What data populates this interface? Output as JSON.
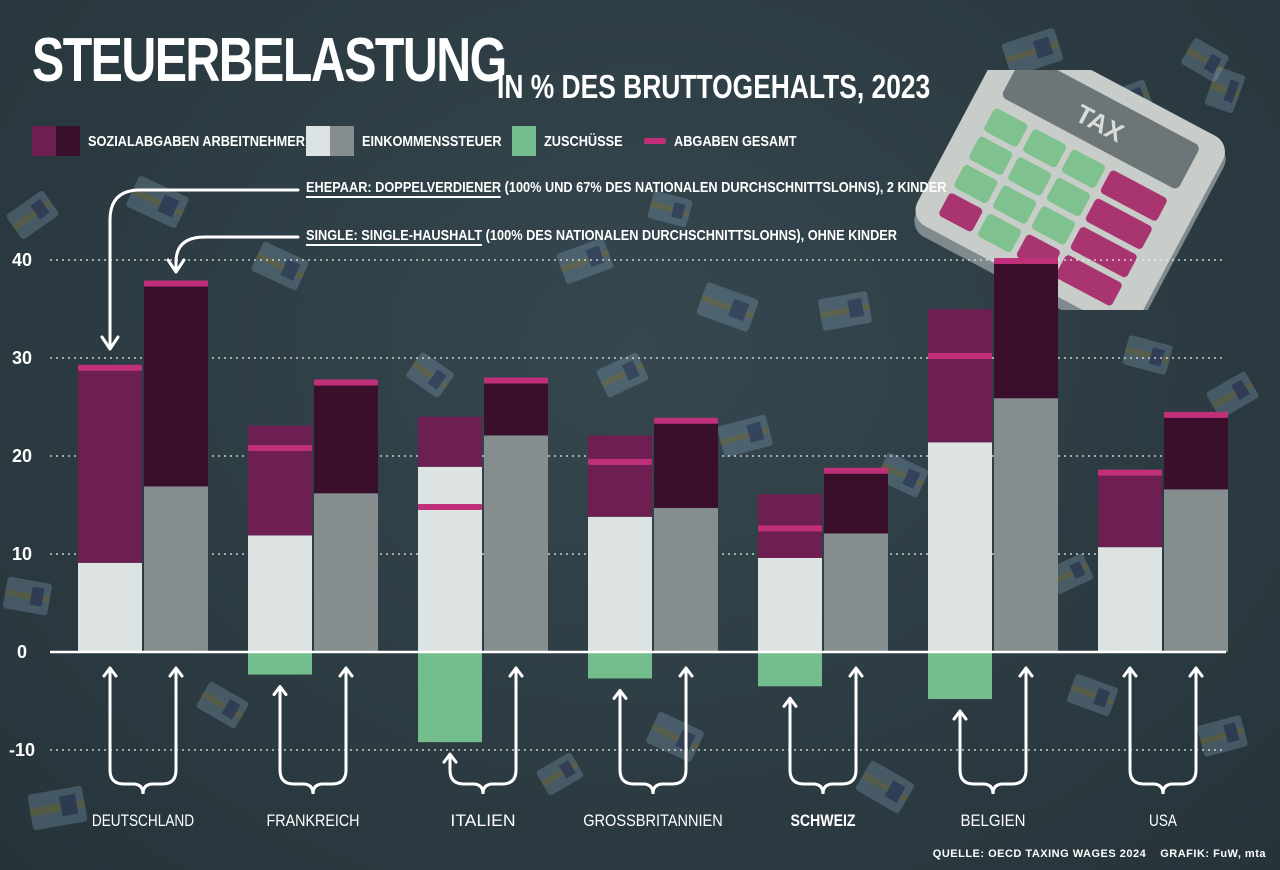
{
  "decoration": {
    "calculator_display": "TAX"
  },
  "chart_data": {
    "type": "bar",
    "title": "STEUERBELASTUNG",
    "subtitle": "IN % DES BRUTTOGEHALTS, 2023",
    "source": "QUELLE: OECD TAXING WAGES 2024",
    "credit": "GRAFIK: FuW, mta",
    "ylim": [
      -10,
      40
    ],
    "yticks": [
      -10,
      0,
      10,
      20,
      30,
      40
    ],
    "grid": true,
    "legend": [
      {
        "label": "SOZIALABGABEN ARBEITNEHMER"
      },
      {
        "label": "EINKOMMENSSTEUER"
      },
      {
        "label": "ZUSCHÜSSE"
      },
      {
        "label": "ABGABEN GESAMT"
      }
    ],
    "notes": [
      {
        "key": "EHEPAAR: DOPPELVERDIENER",
        "text": "(100% UND 67% DES NATIONALEN DURCHSCHNITTSLOHNS), 2 KINDER"
      },
      {
        "key": "SINGLE: SINGLE-HAUSHALT",
        "text": "(100% DES NATIONALEN DURCHSCHNITTSLOHNS), OHNE KINDER"
      }
    ],
    "categories": [
      "DEUTSCHLAND",
      "FRANKREICH",
      "ITALIEN",
      "GROSSBRITANNIEN",
      "SCHWEIZ",
      "BELGIEN",
      "USA"
    ],
    "highlight": "SCHWEIZ",
    "series": [
      {
        "name": "EHEPAAR",
        "einkommenssteuer": [
          9.1,
          11.9,
          18.9,
          13.8,
          9.6,
          21.4,
          10.7
        ],
        "sozialabgaben": [
          19.9,
          11.2,
          5.1,
          8.3,
          6.5,
          13.6,
          7.6
        ],
        "zuschuesse": [
          0,
          -2.3,
          -9.2,
          -2.7,
          -3.5,
          -4.8,
          0
        ],
        "gesamt": [
          29.0,
          20.8,
          14.8,
          19.4,
          12.6,
          30.2,
          18.3
        ]
      },
      {
        "name": "SINGLE",
        "einkommenssteuer": [
          16.9,
          16.2,
          22.1,
          14.7,
          12.1,
          25.9,
          16.6
        ],
        "sozialabgaben": [
          20.7,
          11.3,
          5.6,
          8.9,
          6.4,
          14.0,
          7.6
        ],
        "zuschuesse": [
          0,
          0,
          0,
          0,
          0,
          0,
          0
        ],
        "gesamt": [
          37.6,
          27.5,
          27.7,
          23.6,
          18.5,
          39.9,
          24.2
        ]
      }
    ],
    "colors": {
      "sozial_single": "#6e1f52",
      "sozial_ehepaar": "#3a0f2c",
      "steuer_single": "#dde2e2",
      "steuer_ehepaar": "#858d8f",
      "zuschuesse": "#74bd8c",
      "gesamt": "#c0307a"
    }
  }
}
